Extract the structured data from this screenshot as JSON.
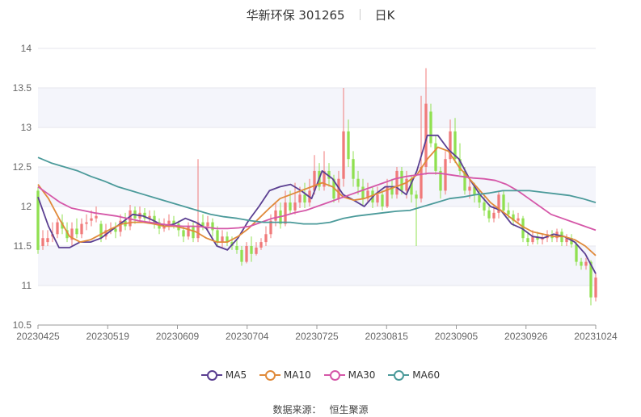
{
  "title": {
    "name": "华新环保 301265",
    "period": "日K"
  },
  "source": {
    "label": "数据来源：",
    "value": "恒生聚源"
  },
  "chart_data": {
    "type": "candlestick",
    "ylim": [
      10.5,
      14
    ],
    "y_ticks": [
      "10.5",
      "11",
      "11.5",
      "12",
      "12.5",
      "13",
      "13.5",
      "14"
    ],
    "x_ticks": [
      "20230425",
      "20230519",
      "20230609",
      "20230704",
      "20230725",
      "20230815",
      "20230905",
      "20230926",
      "20231024"
    ],
    "up_color": "#f07a7a",
    "down_color": "#90e050",
    "grid": true,
    "bands": true,
    "legend_position": "bottom",
    "series": [
      {
        "name": "MA5",
        "color": "#5b3f91"
      },
      {
        "name": "MA10",
        "color": "#e08a3a"
      },
      {
        "name": "MA30",
        "color": "#d557a8"
      },
      {
        "name": "MA60",
        "color": "#4b9a9a"
      }
    ],
    "candles": [
      [
        12.2,
        11.45,
        12.25,
        11.4
      ],
      [
        11.5,
        11.6,
        11.7,
        11.45
      ],
      [
        11.55,
        11.6,
        11.7,
        11.5
      ],
      [
        11.62,
        11.65,
        11.8,
        11.55
      ],
      [
        11.65,
        11.8,
        11.85,
        11.6
      ],
      [
        11.8,
        11.72,
        11.9,
        11.65
      ],
      [
        11.7,
        11.6,
        11.8,
        11.55
      ],
      [
        11.58,
        11.72,
        11.8,
        11.5
      ],
      [
        11.72,
        11.65,
        11.85,
        11.6
      ],
      [
        11.65,
        11.78,
        11.85,
        11.6
      ],
      [
        11.78,
        11.8,
        11.9,
        11.7
      ],
      [
        11.82,
        11.85,
        11.95,
        11.75
      ],
      [
        11.85,
        11.88,
        12.0,
        11.8
      ],
      [
        11.78,
        11.6,
        11.82,
        11.55
      ],
      [
        11.62,
        11.7,
        11.78,
        11.58
      ],
      [
        11.7,
        11.72,
        11.8,
        11.65
      ],
      [
        11.72,
        11.68,
        11.8,
        11.6
      ],
      [
        11.68,
        11.82,
        11.9,
        11.62
      ],
      [
        11.82,
        11.75,
        11.92,
        11.7
      ],
      [
        11.75,
        11.95,
        12.02,
        11.7
      ],
      [
        11.95,
        11.85,
        12.0,
        11.78
      ],
      [
        11.85,
        11.92,
        12.0,
        11.8
      ],
      [
        11.92,
        11.85,
        11.98,
        11.8
      ],
      [
        11.85,
        11.88,
        11.95,
        11.78
      ],
      [
        11.88,
        11.8,
        11.95,
        11.72
      ],
      [
        11.8,
        11.72,
        11.85,
        11.65
      ],
      [
        11.72,
        11.75,
        11.85,
        11.68
      ],
      [
        11.75,
        11.82,
        11.9,
        11.7
      ],
      [
        11.82,
        11.78,
        11.88,
        11.72
      ],
      [
        11.78,
        11.7,
        11.82,
        11.62
      ],
      [
        11.7,
        11.62,
        11.75,
        11.55
      ],
      [
        11.62,
        11.75,
        11.8,
        11.58
      ],
      [
        11.75,
        11.6,
        11.8,
        11.55
      ],
      [
        11.6,
        11.8,
        12.6,
        11.55
      ],
      [
        11.8,
        11.75,
        11.9,
        11.7
      ],
      [
        11.75,
        11.8,
        11.88,
        11.7
      ],
      [
        11.8,
        11.7,
        11.85,
        11.62
      ],
      [
        11.7,
        11.55,
        11.75,
        11.5
      ],
      [
        11.55,
        11.62,
        11.7,
        11.48
      ],
      [
        11.62,
        11.55,
        11.68,
        11.5
      ],
      [
        11.55,
        11.5,
        11.62,
        11.45
      ],
      [
        11.5,
        11.45,
        11.58,
        11.4
      ],
      [
        11.45,
        11.3,
        11.5,
        11.25
      ],
      [
        11.3,
        11.5,
        11.55,
        11.28
      ],
      [
        11.5,
        11.4,
        11.62,
        11.3
      ],
      [
        11.4,
        11.48,
        11.55,
        11.38
      ],
      [
        11.48,
        11.55,
        11.6,
        11.45
      ],
      [
        11.55,
        11.65,
        11.75,
        11.5
      ],
      [
        11.65,
        11.82,
        11.9,
        11.6
      ],
      [
        11.82,
        11.95,
        12.05,
        11.75
      ],
      [
        11.95,
        11.78,
        12.05,
        11.72
      ],
      [
        11.78,
        12.05,
        12.2,
        11.75
      ],
      [
        12.05,
        11.95,
        12.2,
        11.9
      ],
      [
        11.95,
        12.05,
        12.3,
        11.9
      ],
      [
        12.05,
        12.15,
        12.25,
        11.98
      ],
      [
        12.15,
        12.05,
        12.3,
        11.98
      ],
      [
        12.05,
        12.2,
        12.35,
        12.0
      ],
      [
        12.2,
        12.45,
        12.65,
        12.15
      ],
      [
        12.45,
        12.25,
        12.55,
        12.2
      ],
      [
        12.25,
        12.45,
        12.7,
        12.2
      ],
      [
        12.45,
        12.35,
        12.55,
        12.25
      ],
      [
        12.35,
        12.1,
        12.4,
        12.05
      ],
      [
        12.1,
        12.35,
        12.45,
        12.05
      ],
      [
        12.35,
        12.95,
        13.5,
        12.25
      ],
      [
        12.95,
        12.6,
        13.1,
        12.5
      ],
      [
        12.6,
        12.35,
        12.7,
        12.25
      ],
      [
        12.35,
        12.25,
        12.45,
        12.15
      ],
      [
        12.25,
        12.1,
        12.35,
        12.0
      ],
      [
        12.1,
        12.2,
        12.3,
        12.05
      ],
      [
        12.2,
        12.05,
        12.25,
        11.98
      ],
      [
        12.05,
        12.15,
        12.25,
        12.0
      ],
      [
        12.15,
        12.0,
        12.2,
        11.95
      ],
      [
        12.0,
        12.25,
        12.35,
        11.98
      ],
      [
        12.25,
        12.15,
        12.35,
        12.1
      ],
      [
        12.15,
        12.45,
        12.5,
        12.1
      ],
      [
        12.45,
        12.2,
        12.5,
        12.15
      ],
      [
        12.2,
        12.35,
        12.45,
        12.1
      ],
      [
        12.35,
        12.15,
        12.4,
        12.05
      ],
      [
        12.15,
        12.1,
        12.2,
        11.5
      ],
      [
        12.1,
        12.5,
        13.4,
        12.05
      ],
      [
        12.5,
        13.3,
        13.75,
        12.4
      ],
      [
        13.2,
        12.8,
        13.3,
        12.75
      ],
      [
        12.8,
        12.45,
        12.9,
        12.4
      ],
      [
        12.45,
        12.2,
        12.5,
        12.1
      ],
      [
        12.2,
        12.6,
        12.7,
        12.15
      ],
      [
        12.6,
        12.95,
        13.1,
        12.55
      ],
      [
        12.95,
        12.6,
        13.12,
        12.55
      ],
      [
        12.6,
        12.45,
        12.8,
        12.4
      ],
      [
        12.45,
        12.2,
        12.5,
        12.15
      ],
      [
        12.2,
        12.25,
        12.35,
        12.1
      ],
      [
        12.25,
        12.15,
        12.3,
        12.05
      ],
      [
        12.15,
        12.05,
        12.2,
        11.98
      ],
      [
        12.05,
        11.95,
        12.12,
        11.88
      ],
      [
        11.95,
        11.85,
        12.0,
        11.8
      ],
      [
        11.85,
        11.92,
        12.02,
        11.8
      ],
      [
        11.92,
        12.15,
        12.2,
        11.85
      ],
      [
        12.15,
        11.95,
        12.2,
        11.9
      ],
      [
        11.95,
        11.9,
        12.05,
        11.85
      ],
      [
        11.9,
        11.82,
        11.95,
        11.75
      ],
      [
        11.82,
        11.85,
        11.92,
        11.78
      ],
      [
        11.85,
        11.6,
        11.88,
        11.55
      ],
      [
        11.6,
        11.55,
        11.68,
        11.5
      ],
      [
        11.55,
        11.62,
        11.7,
        11.52
      ],
      [
        11.62,
        11.58,
        11.68,
        11.52
      ],
      [
        11.58,
        11.6,
        11.65,
        11.52
      ],
      [
        11.6,
        11.65,
        11.7,
        11.55
      ],
      [
        11.65,
        11.6,
        11.7,
        11.55
      ],
      [
        11.6,
        11.68,
        11.72,
        11.55
      ],
      [
        11.68,
        11.55,
        11.72,
        11.5
      ],
      [
        11.55,
        11.6,
        11.65,
        11.5
      ],
      [
        11.6,
        11.52,
        11.65,
        11.48
      ],
      [
        11.52,
        11.3,
        11.55,
        11.25
      ],
      [
        11.3,
        11.25,
        11.35,
        11.2
      ],
      [
        11.25,
        11.3,
        11.35,
        11.2
      ],
      [
        11.3,
        10.85,
        11.32,
        10.75
      ],
      [
        10.85,
        11.1,
        11.15,
        10.8
      ]
    ],
    "ma": {
      "MA5": [
        12.12,
        11.75,
        11.48,
        11.48,
        11.55,
        11.55,
        11.6,
        11.7,
        11.8,
        11.9,
        11.88,
        11.82,
        11.75,
        11.78,
        11.85,
        11.8,
        11.72,
        11.5,
        11.45,
        11.6,
        11.82,
        12.0,
        12.2,
        12.25,
        12.28,
        12.2,
        12.1,
        12.45,
        12.35,
        12.15,
        12.08,
        12.0,
        12.15,
        12.25,
        12.25,
        12.15,
        12.45,
        12.9,
        12.9,
        12.72,
        12.6,
        12.35,
        12.15,
        12.0,
        11.95,
        11.78,
        11.72,
        11.62,
        11.6,
        11.65,
        11.62,
        11.55,
        11.4,
        11.15
      ],
      "MA10": [
        12.28,
        12.1,
        11.85,
        11.62,
        11.55,
        11.58,
        11.65,
        11.72,
        11.78,
        11.8,
        11.8,
        11.78,
        11.75,
        11.75,
        11.72,
        11.68,
        11.6,
        11.55,
        11.55,
        11.62,
        11.72,
        11.85,
        11.98,
        12.1,
        12.15,
        12.2,
        12.25,
        12.3,
        12.25,
        12.12,
        12.08,
        12.1,
        12.15,
        12.2,
        12.25,
        12.3,
        12.4,
        12.6,
        12.75,
        12.7,
        12.5,
        12.35,
        12.2,
        12.05,
        11.95,
        11.85,
        11.75,
        11.68,
        11.65,
        11.62,
        11.62,
        11.58,
        11.5,
        11.38
      ],
      "MA30": [
        12.25,
        12.15,
        12.05,
        11.98,
        11.95,
        11.92,
        11.9,
        11.88,
        11.85,
        11.82,
        11.8,
        11.78,
        11.76,
        11.75,
        11.75,
        11.74,
        11.72,
        11.72,
        11.73,
        11.75,
        11.8,
        11.85,
        11.88,
        11.92,
        11.95,
        12.0,
        12.05,
        12.1,
        12.15,
        12.2,
        12.25,
        12.3,
        12.35,
        12.38,
        12.4,
        12.42,
        12.42,
        12.4,
        12.38,
        12.36,
        12.35,
        12.33,
        12.28,
        12.2,
        12.1,
        12.0,
        11.9,
        11.85,
        11.8,
        11.75,
        11.7
      ],
      "MA60": [
        12.62,
        12.55,
        12.5,
        12.45,
        12.38,
        12.32,
        12.25,
        12.2,
        12.15,
        12.1,
        12.05,
        12.0,
        11.95,
        11.9,
        11.87,
        11.85,
        11.82,
        11.8,
        11.8,
        11.8,
        11.78,
        11.78,
        11.8,
        11.85,
        11.88,
        11.9,
        11.92,
        11.94,
        11.95,
        12.0,
        12.05,
        12.1,
        12.12,
        12.15,
        12.17,
        12.2,
        12.2,
        12.2,
        12.18,
        12.16,
        12.14,
        12.1,
        12.05
      ]
    }
  }
}
